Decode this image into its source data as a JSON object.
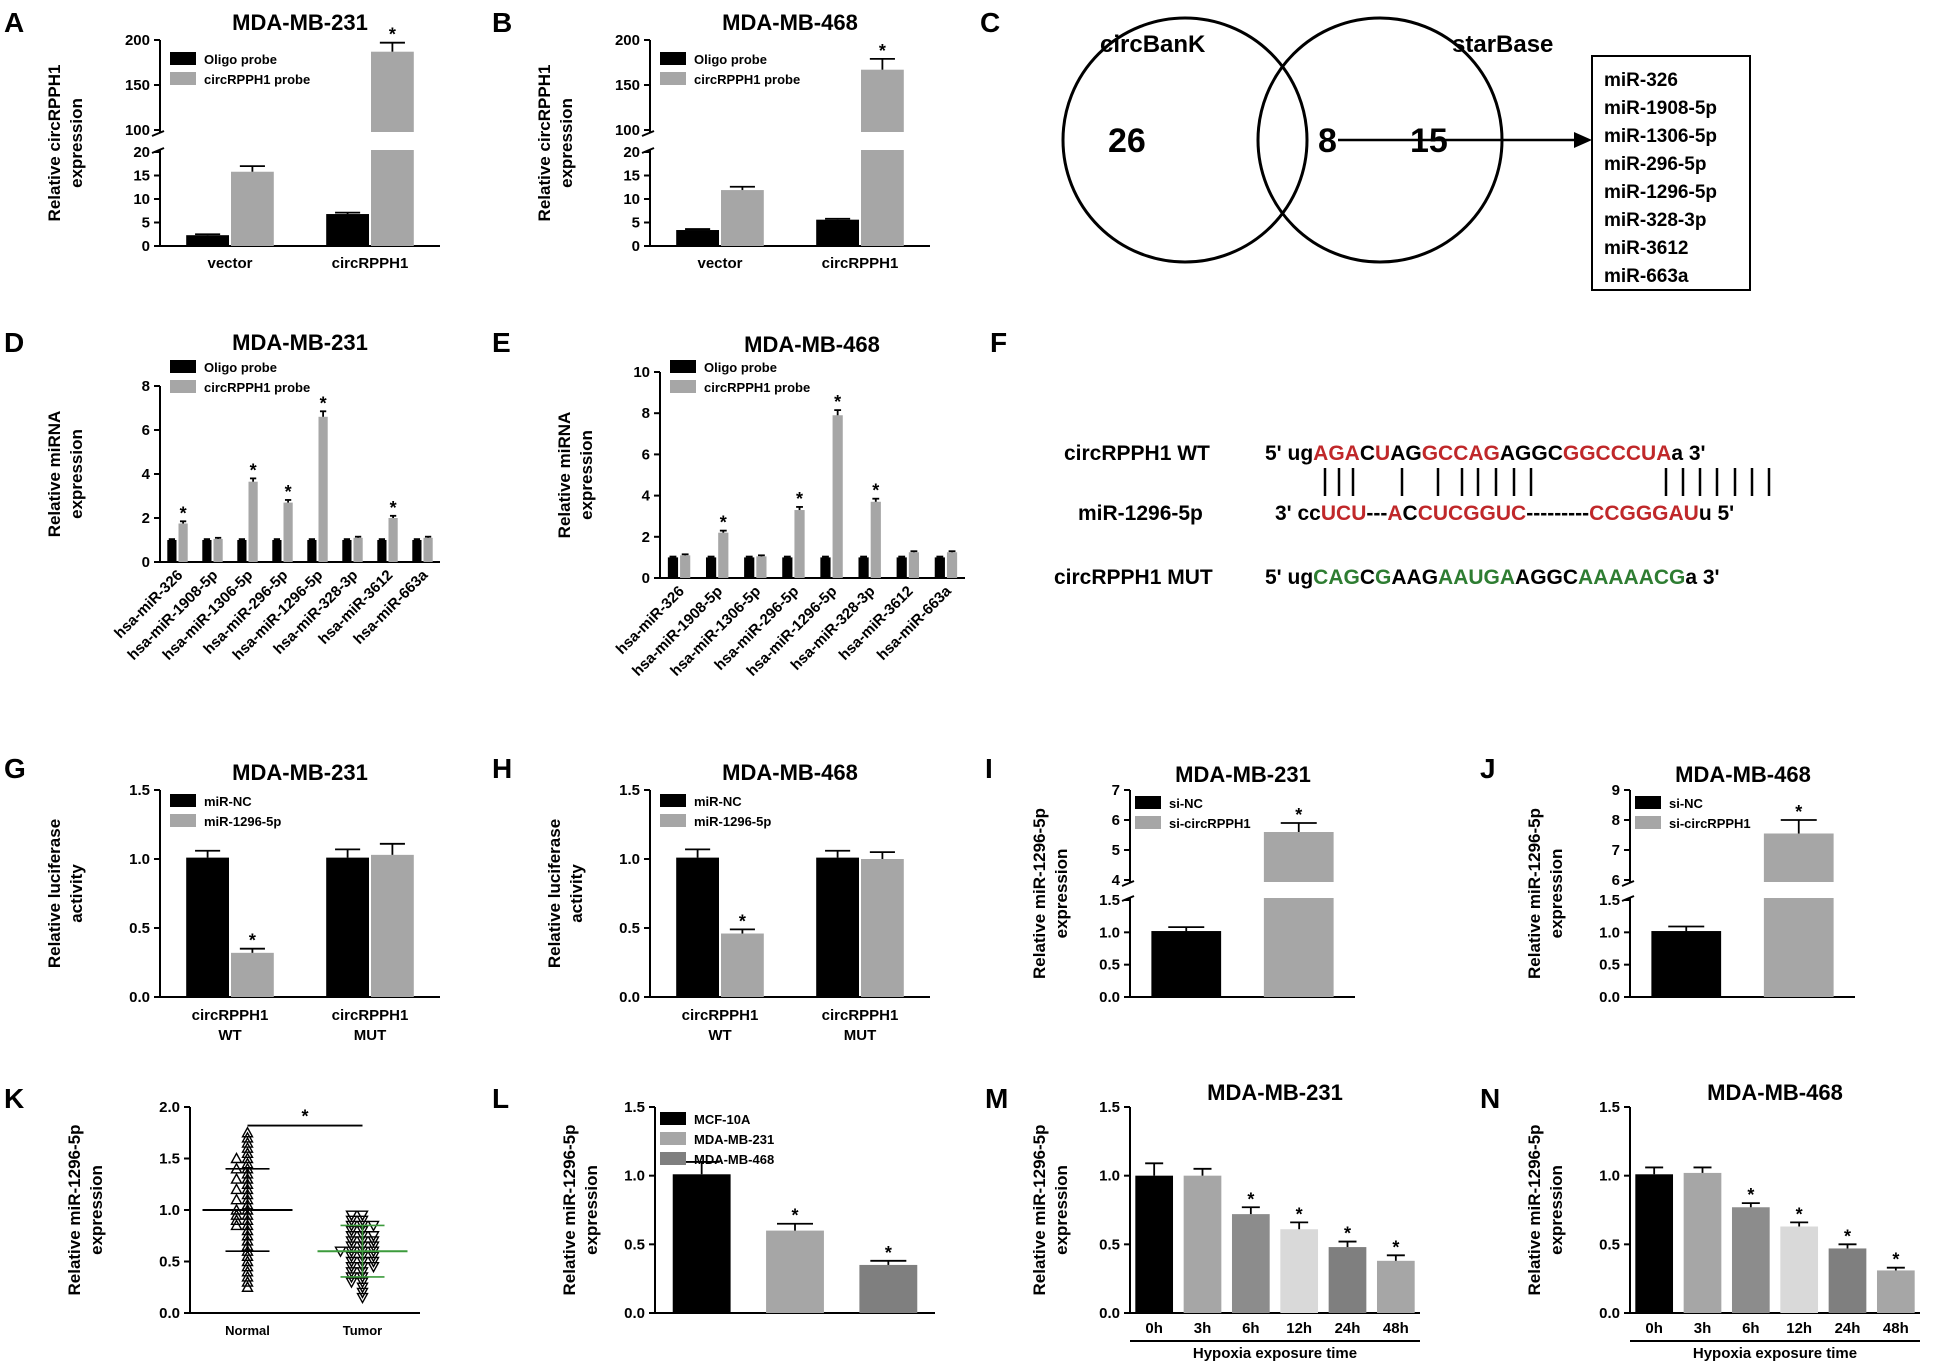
{
  "panel_labels": {
    "A": "A",
    "B": "B",
    "C": "C",
    "D": "D",
    "E": "E",
    "F": "F",
    "G": "G",
    "H": "H",
    "I": "I",
    "J": "J",
    "K": "K",
    "L": "L",
    "M": "M",
    "N": "N"
  },
  "colors": {
    "black": "#000000",
    "gray": "#a6a6a6",
    "dark_gray": "#7f7f7f",
    "mid_gray": "#8c8c8c",
    "light_gray": "#d9d9d9",
    "red": "#c0282a",
    "green": "#2e7d32",
    "green_line": "#3c9b3c"
  },
  "venn": {
    "left_label": "circBanK",
    "right_label": "starBase",
    "left_only": "26",
    "overlap": "8",
    "right_only": "15",
    "mirnas": [
      "miR-326",
      "miR-1908-5p",
      "miR-1306-5p",
      "miR-296-5p",
      "miR-1296-5p",
      "miR-328-3p",
      "miR-3612",
      "miR-663a"
    ]
  },
  "sequences": {
    "wt_label": "circRPPH1 WT",
    "mir_label": "miR-1296-5p",
    "mut_label": "circRPPH1 MUT",
    "wt": [
      {
        "t": "5' ug",
        "c": "k"
      },
      {
        "t": "AGA",
        "c": "r"
      },
      {
        "t": "C",
        "c": "k"
      },
      {
        "t": "U",
        "c": "r"
      },
      {
        "t": "AG",
        "c": "k"
      },
      {
        "t": "GCCAG",
        "c": "r"
      },
      {
        "t": "AGGC",
        "c": "k"
      },
      {
        "t": "GGCCCUA",
        "c": "r"
      },
      {
        "t": "a 3'",
        "c": "k"
      }
    ],
    "mir": [
      {
        "t": "3' cc",
        "c": "k"
      },
      {
        "t": "UCU",
        "c": "r"
      },
      {
        "t": "---",
        "c": "k"
      },
      {
        "t": "A",
        "c": "r"
      },
      {
        "t": "C",
        "c": "k"
      },
      {
        "t": "CU",
        "c": "r"
      },
      {
        "t": "CGGUC",
        "c": "r"
      },
      {
        "t": "---------",
        "c": "k"
      },
      {
        "t": "CCGGGAU",
        "c": "r"
      },
      {
        "t": "u 5'",
        "c": "k"
      }
    ],
    "mut": [
      {
        "t": "5' ug",
        "c": "k"
      },
      {
        "t": "CAG",
        "c": "g"
      },
      {
        "t": "C",
        "c": "k"
      },
      {
        "t": "G",
        "c": "g"
      },
      {
        "t": "AAG",
        "c": "k"
      },
      {
        "t": "AAUGA",
        "c": "g"
      },
      {
        "t": "AGGC",
        "c": "k"
      },
      {
        "t": "AAAAACG",
        "c": "g"
      },
      {
        "t": "a 3'",
        "c": "k"
      }
    ]
  },
  "chart_data": [
    {
      "panel": "A",
      "type": "bar",
      "title": "MDA-MB-231",
      "ylabel": "Relative circRPPH1 expression",
      "categories": [
        "vector",
        "circRPPH1"
      ],
      "axis_break": {
        "lower_max": 20,
        "upper_min": 100,
        "upper_max": 200
      },
      "yticks_lower": [
        0,
        5,
        10,
        15,
        20
      ],
      "yticks_upper": [
        100,
        150,
        200
      ],
      "series": [
        {
          "name": "Oligo probe",
          "color": "black",
          "values": [
            2.3,
            6.8
          ],
          "errors": [
            0.2,
            0.3
          ],
          "sig": [
            false,
            false
          ]
        },
        {
          "name": "circRPPH1 probe",
          "color": "gray",
          "values": [
            15.8,
            187
          ],
          "errors": [
            1.2,
            10
          ],
          "sig": [
            false,
            true
          ]
        }
      ],
      "sig_label": "*"
    },
    {
      "panel": "B",
      "type": "bar",
      "title": "MDA-MB-468",
      "ylabel": "Relative circRPPH1 expression",
      "categories": [
        "vector",
        "circRPPH1"
      ],
      "axis_break": {
        "lower_max": 20,
        "upper_min": 100,
        "upper_max": 200
      },
      "yticks_lower": [
        0,
        5,
        10,
        15,
        20
      ],
      "yticks_upper": [
        100,
        150,
        200
      ],
      "series": [
        {
          "name": "Oligo probe",
          "color": "black",
          "values": [
            3.4,
            5.6
          ],
          "errors": [
            0.2,
            0.2
          ],
          "sig": [
            false,
            false
          ]
        },
        {
          "name": "circRPPH1 probe",
          "color": "gray",
          "values": [
            11.9,
            167
          ],
          "errors": [
            0.7,
            12
          ],
          "sig": [
            false,
            true
          ]
        }
      ],
      "sig_label": "*"
    },
    {
      "panel": "D",
      "type": "bar",
      "title": "MDA-MB-231",
      "ylabel": "Relative miRNA expression",
      "categories": [
        "hsa-miR-326",
        "hsa-miR-1908-5p",
        "hsa-miR-1306-5p",
        "hsa-miR-296-5p",
        "hsa-miR-1296-5p",
        "hsa-miR-328-3p",
        "hsa-miR-3612",
        "hsa-miR-663a"
      ],
      "ylim": [
        0,
        8
      ],
      "yticks": [
        0,
        2,
        4,
        6,
        8
      ],
      "series": [
        {
          "name": "Oligo probe",
          "color": "black",
          "values": [
            1,
            1,
            1,
            1,
            1,
            1,
            1,
            1
          ],
          "errors": [
            0.04,
            0.04,
            0.04,
            0.04,
            0.04,
            0.04,
            0.04,
            0.04
          ],
          "sig": [
            false,
            false,
            false,
            false,
            false,
            false,
            false,
            false
          ]
        },
        {
          "name": "circRPPH1 probe",
          "color": "gray",
          "values": [
            1.75,
            1.05,
            3.65,
            2.7,
            6.6,
            1.1,
            2.0,
            1.1
          ],
          "errors": [
            0.1,
            0.05,
            0.15,
            0.12,
            0.25,
            0.05,
            0.1,
            0.05
          ],
          "sig": [
            true,
            false,
            true,
            true,
            true,
            false,
            true,
            false
          ]
        }
      ],
      "sig_label": "*"
    },
    {
      "panel": "E",
      "type": "bar",
      "title": "MDA-MB-468",
      "ylabel": "Relative miRNA expression",
      "categories": [
        "hsa-miR-326",
        "hsa-miR-1908-5p",
        "hsa-miR-1306-5p",
        "hsa-miR-296-5p",
        "hsa-miR-1296-5p",
        "hsa-miR-328-3p",
        "hsa-miR-3612",
        "hsa-miR-663a"
      ],
      "ylim": [
        0,
        10
      ],
      "yticks": [
        0,
        2,
        4,
        6,
        8,
        10
      ],
      "series": [
        {
          "name": "Oligo probe",
          "color": "black",
          "values": [
            1,
            1,
            1,
            1,
            1,
            1,
            1,
            1
          ],
          "errors": [
            0.04,
            0.04,
            0.04,
            0.04,
            0.04,
            0.04,
            0.04,
            0.04
          ],
          "sig": [
            false,
            false,
            false,
            false,
            false,
            false,
            false,
            false
          ]
        },
        {
          "name": "circRPPH1 probe",
          "color": "gray",
          "values": [
            1.1,
            2.2,
            1.05,
            3.3,
            7.9,
            3.7,
            1.25,
            1.25
          ],
          "errors": [
            0.05,
            0.1,
            0.05,
            0.15,
            0.25,
            0.15,
            0.05,
            0.05
          ],
          "sig": [
            false,
            true,
            false,
            true,
            true,
            true,
            false,
            false
          ]
        }
      ],
      "sig_label": "*"
    },
    {
      "panel": "G",
      "type": "bar",
      "title": "MDA-MB-231",
      "ylabel": "Relative luciferase activity",
      "categories": [
        "circRPPH1\nWT",
        "circRPPH1\nMUT"
      ],
      "ylim": [
        0,
        1.5
      ],
      "yticks": [
        "0.0",
        "0.5",
        "1.0",
        "1.5"
      ],
      "series": [
        {
          "name": "miR-NC",
          "color": "black",
          "values": [
            1.01,
            1.01
          ],
          "errors": [
            0.05,
            0.06
          ],
          "sig": [
            false,
            false
          ]
        },
        {
          "name": "miR-1296-5p",
          "color": "gray",
          "values": [
            0.32,
            1.03
          ],
          "errors": [
            0.03,
            0.08
          ],
          "sig": [
            true,
            false
          ]
        }
      ],
      "sig_label": "*"
    },
    {
      "panel": "H",
      "type": "bar",
      "title": "MDA-MB-468",
      "ylabel": "Relative luciferase activity",
      "categories": [
        "circRPPH1\nWT",
        "circRPPH1\nMUT"
      ],
      "ylim": [
        0,
        1.5
      ],
      "yticks": [
        "0.0",
        "0.5",
        "1.0",
        "1.5"
      ],
      "series": [
        {
          "name": "miR-NC",
          "color": "black",
          "values": [
            1.01,
            1.01
          ],
          "errors": [
            0.06,
            0.05
          ],
          "sig": [
            false,
            false
          ]
        },
        {
          "name": "miR-1296-5p",
          "color": "gray",
          "values": [
            0.46,
            1.0
          ],
          "errors": [
            0.03,
            0.05
          ],
          "sig": [
            true,
            false
          ]
        }
      ],
      "sig_label": "*"
    },
    {
      "panel": "I",
      "type": "bar",
      "title": "MDA-MB-231",
      "ylabel": "Relative miR-1296-5p expression",
      "categories": [
        "si-NC",
        "si-circRPPH1"
      ],
      "axis_break": {
        "lower_max": 1.5,
        "upper_min": 4,
        "upper_max": 7
      },
      "yticks_lower": [
        "0.0",
        "0.5",
        "1.0",
        "1.5"
      ],
      "yticks_upper": [
        "4",
        "5",
        "6",
        "7"
      ],
      "bars": [
        {
          "name": "si-NC",
          "color": "black",
          "value": 1.02,
          "error": 0.06,
          "sig": false
        },
        {
          "name": "si-circRPPH1",
          "color": "gray",
          "value": 5.6,
          "error": 0.3,
          "sig": true
        }
      ],
      "sig_label": "*"
    },
    {
      "panel": "J",
      "type": "bar",
      "title": "MDA-MB-468",
      "ylabel": "Relative miR-1296-5p expression",
      "categories": [
        "si-NC",
        "si-circRPPH1"
      ],
      "axis_break": {
        "lower_max": 1.5,
        "upper_min": 6,
        "upper_max": 9
      },
      "yticks_lower": [
        "0.0",
        "0.5",
        "1.0",
        "1.5"
      ],
      "yticks_upper": [
        "6",
        "7",
        "8",
        "9"
      ],
      "bars": [
        {
          "name": "si-NC",
          "color": "black",
          "value": 1.02,
          "error": 0.07,
          "sig": false
        },
        {
          "name": "si-circRPPH1",
          "color": "gray",
          "value": 7.55,
          "error": 0.45,
          "sig": true
        }
      ],
      "sig_label": "*"
    },
    {
      "panel": "K",
      "type": "scatter",
      "ylabel": "Relative miR-1296-5p expression",
      "categories": [
        "Normal",
        "Tumor"
      ],
      "ylim": [
        0,
        2.0
      ],
      "yticks": [
        "0.0",
        "0.5",
        "1.0",
        "1.5",
        "2.0"
      ],
      "groups": [
        {
          "name": "Normal",
          "mean": 1.0,
          "sd": 0.4,
          "points": [
            1.75,
            1.7,
            1.65,
            1.6,
            1.55,
            1.5,
            1.5,
            1.45,
            1.4,
            1.4,
            1.35,
            1.3,
            1.25,
            1.2,
            1.2,
            1.15,
            1.1,
            1.05,
            1.0,
            1.0,
            0.95,
            0.95,
            0.9,
            0.85,
            0.85,
            0.8,
            0.75,
            0.7,
            0.65,
            0.6,
            0.55,
            0.5,
            0.45,
            0.4,
            0.35,
            0.3,
            0.25,
            1.3,
            1.1,
            0.9
          ]
        },
        {
          "name": "Tumor",
          "mean": 0.6,
          "sd": 0.25,
          "points": [
            0.95,
            0.95,
            0.9,
            0.9,
            0.85,
            0.85,
            0.8,
            0.8,
            0.75,
            0.75,
            0.7,
            0.7,
            0.7,
            0.65,
            0.65,
            0.6,
            0.6,
            0.6,
            0.55,
            0.55,
            0.5,
            0.5,
            0.5,
            0.45,
            0.45,
            0.4,
            0.4,
            0.35,
            0.35,
            0.3,
            0.3,
            0.25,
            0.2,
            0.15,
            0.65,
            0.55,
            0.45,
            0.75,
            0.85,
            0.6
          ]
        }
      ],
      "sig_label": "*"
    },
    {
      "panel": "L",
      "type": "bar",
      "ylabel": "Relative miR-1296-5p expression",
      "categories": [
        "MCF-10A",
        "MDA-MB-231",
        "MDA-MB-468"
      ],
      "ylim": [
        0,
        1.5
      ],
      "yticks": [
        "0.0",
        "0.5",
        "1.0",
        "1.5"
      ],
      "bars": [
        {
          "name": "MCF-10A",
          "color": "black",
          "value": 1.01,
          "error": 0.09,
          "sig": false
        },
        {
          "name": "MDA-MB-231",
          "color": "gray",
          "value": 0.6,
          "error": 0.05,
          "sig": true
        },
        {
          "name": "MDA-MB-468",
          "color": "dark_gray",
          "value": 0.35,
          "error": 0.03,
          "sig": true
        }
      ],
      "sig_label": "*"
    },
    {
      "panel": "M",
      "type": "bar",
      "title": "MDA-MB-231",
      "ylabel": "Relative miR-1296-5p expression",
      "xlabel": "Hypoxia exposure time",
      "categories": [
        "0h",
        "3h",
        "6h",
        "12h",
        "24h",
        "48h"
      ],
      "ylim": [
        0,
        1.5
      ],
      "yticks": [
        "0.0",
        "0.5",
        "1.0",
        "1.5"
      ],
      "values": [
        1.0,
        1.0,
        0.72,
        0.61,
        0.48,
        0.38
      ],
      "errors": [
        0.09,
        0.05,
        0.05,
        0.05,
        0.04,
        0.04
      ],
      "sig": [
        false,
        false,
        true,
        true,
        true,
        true
      ],
      "bar_colors": [
        "black",
        "gray",
        "mid_gray",
        "light_gray",
        "dark_gray",
        "gray"
      ],
      "sig_label": "*"
    },
    {
      "panel": "N",
      "type": "bar",
      "title": "MDA-MB-468",
      "ylabel": "Relative miR-1296-5p expression",
      "xlabel": "Hypoxia exposure time",
      "categories": [
        "0h",
        "3h",
        "6h",
        "12h",
        "24h",
        "48h"
      ],
      "ylim": [
        0,
        1.5
      ],
      "yticks": [
        "0.0",
        "0.5",
        "1.0",
        "1.5"
      ],
      "values": [
        1.01,
        1.02,
        0.77,
        0.63,
        0.47,
        0.31
      ],
      "errors": [
        0.05,
        0.04,
        0.03,
        0.03,
        0.03,
        0.02
      ],
      "sig": [
        false,
        false,
        true,
        true,
        true,
        true
      ],
      "bar_colors": [
        "black",
        "gray",
        "mid_gray",
        "light_gray",
        "dark_gray",
        "gray"
      ],
      "sig_label": "*"
    }
  ]
}
